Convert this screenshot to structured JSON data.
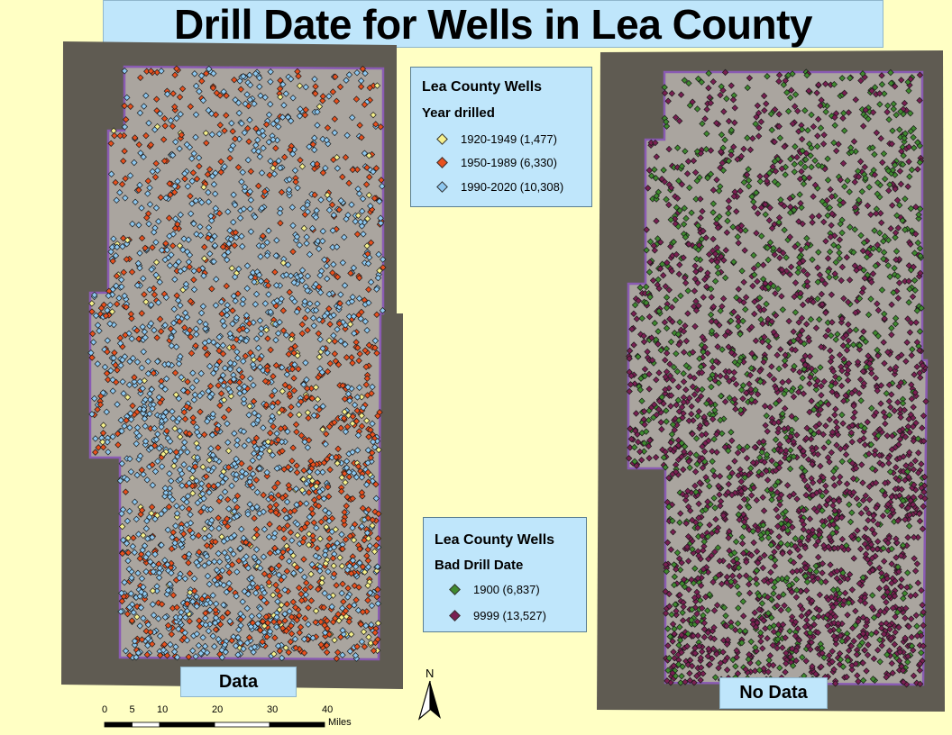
{
  "title": "Drill Date for Wells in Lea County",
  "legend_year": {
    "title": "Lea County Wells",
    "subtitle": "Year drilled",
    "items": [
      {
        "label": "1920-1949 (1,477)",
        "color": "#f5f08c"
      },
      {
        "label": "1950-1989 (6,330)",
        "color": "#e8501e"
      },
      {
        "label": "1990-2020 (10,308)",
        "color": "#8ec8f0"
      }
    ]
  },
  "legend_bad": {
    "title": "Lea County Wells",
    "subtitle": "Bad Drill Date",
    "items": [
      {
        "label": "1900 (6,837)",
        "color": "#3f8a2f"
      },
      {
        "label": "9999  (13,527)",
        "color": "#7a1f52"
      }
    ]
  },
  "panels": {
    "left_label": "Data",
    "right_label": "No Data"
  },
  "north_arrow": {
    "label": "N"
  },
  "scale_bar": {
    "ticks": [
      "0",
      "5",
      "10",
      "20",
      "30",
      "40"
    ],
    "tick_values": [
      0,
      5,
      10,
      20,
      30,
      40
    ],
    "unit": "Miles"
  },
  "colors": {
    "background": "#ffffc4",
    "label_box": "#bfe6fb",
    "boundary": "#8a5bb3",
    "imagery": "#6f6a60"
  }
}
